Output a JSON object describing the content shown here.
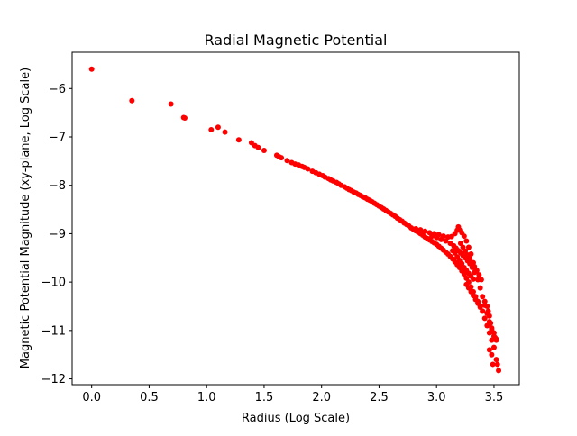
{
  "chart_data": {
    "type": "scatter",
    "title": "Radial Magnetic Potential",
    "xlabel": "Radius (Log Scale)",
    "ylabel": "Magnetic Potential Magnitude (xy-plane, Log Scale)",
    "xlim": [
      -0.17,
      3.72
    ],
    "ylim": [
      -12.12,
      -5.25
    ],
    "xticks": [
      0,
      0.5,
      1,
      1.5,
      2,
      2.5,
      3,
      3.5
    ],
    "xtick_labels": [
      "0.0",
      "0.5",
      "1.0",
      "1.5",
      "2.0",
      "2.5",
      "3.0",
      "3.5"
    ],
    "yticks": [
      -12,
      -11,
      -10,
      -9,
      -8,
      -7,
      -6
    ],
    "ytick_labels": [
      "−12",
      "−11",
      "−10",
      "−9",
      "−8",
      "−7",
      "−6"
    ],
    "grid": false,
    "legend": "none",
    "marker_color": "#ff0000",
    "series": [
      {
        "points": [
          [
            0.0,
            -5.6
          ],
          [
            0.35,
            -6.25
          ],
          [
            0.69,
            -6.32
          ],
          [
            0.8,
            -6.6
          ],
          [
            0.81,
            -6.61
          ],
          [
            1.04,
            -6.85
          ],
          [
            1.1,
            -6.8
          ],
          [
            1.16,
            -6.9
          ],
          [
            1.28,
            -7.06
          ],
          [
            1.39,
            -7.12
          ],
          [
            1.42,
            -7.18
          ],
          [
            1.45,
            -7.22
          ],
          [
            1.5,
            -7.28
          ],
          [
            1.61,
            -7.38
          ],
          [
            1.63,
            -7.41
          ],
          [
            1.65,
            -7.43
          ],
          [
            1.7,
            -7.49
          ],
          [
            1.74,
            -7.53
          ],
          [
            1.77,
            -7.56
          ],
          [
            1.8,
            -7.58
          ],
          [
            1.83,
            -7.61
          ],
          [
            1.85,
            -7.63
          ],
          [
            1.88,
            -7.66
          ],
          [
            1.92,
            -7.71
          ],
          [
            1.95,
            -7.74
          ],
          [
            1.98,
            -7.77
          ],
          [
            2.01,
            -7.8
          ],
          [
            2.03,
            -7.83
          ],
          [
            2.06,
            -7.86
          ],
          [
            2.08,
            -7.89
          ],
          [
            2.1,
            -7.91
          ],
          [
            2.13,
            -7.94
          ],
          [
            2.15,
            -7.97
          ],
          [
            2.17,
            -8.0
          ],
          [
            2.2,
            -8.03
          ],
          [
            2.22,
            -8.06
          ],
          [
            2.24,
            -8.09
          ],
          [
            2.26,
            -8.11
          ],
          [
            2.28,
            -8.14
          ],
          [
            2.3,
            -8.16
          ],
          [
            2.32,
            -8.19
          ],
          [
            2.34,
            -8.21
          ],
          [
            2.36,
            -8.24
          ],
          [
            2.38,
            -8.26
          ],
          [
            2.4,
            -8.29
          ],
          [
            2.42,
            -8.31
          ],
          [
            2.44,
            -8.34
          ],
          [
            2.46,
            -8.37
          ],
          [
            2.48,
            -8.4
          ],
          [
            2.5,
            -8.43
          ],
          [
            2.52,
            -8.46
          ],
          [
            2.54,
            -8.49
          ],
          [
            2.56,
            -8.52
          ],
          [
            2.58,
            -8.55
          ],
          [
            2.6,
            -8.58
          ],
          [
            2.62,
            -8.61
          ],
          [
            2.64,
            -8.64
          ],
          [
            2.66,
            -8.68
          ],
          [
            2.68,
            -8.71
          ],
          [
            2.7,
            -8.74
          ],
          [
            2.72,
            -8.78
          ],
          [
            2.74,
            -8.81
          ],
          [
            2.76,
            -8.84
          ],
          [
            2.78,
            -8.88
          ],
          [
            2.8,
            -8.91
          ],
          [
            2.82,
            -8.94
          ],
          [
            2.84,
            -8.97
          ],
          [
            2.86,
            -9.0
          ],
          [
            2.88,
            -9.03
          ],
          [
            2.9,
            -9.07
          ],
          [
            2.92,
            -9.1
          ],
          [
            2.94,
            -9.13
          ],
          [
            2.96,
            -9.16
          ],
          [
            2.98,
            -9.19
          ],
          [
            3.0,
            -9.22
          ],
          [
            3.02,
            -9.26
          ],
          [
            3.04,
            -9.3
          ],
          [
            3.06,
            -9.34
          ],
          [
            3.08,
            -9.38
          ],
          [
            3.1,
            -9.42
          ],
          [
            3.12,
            -9.47
          ],
          [
            3.14,
            -9.52
          ],
          [
            3.16,
            -9.58
          ],
          [
            3.18,
            -9.64
          ],
          [
            3.2,
            -9.7
          ],
          [
            3.22,
            -9.77
          ],
          [
            3.24,
            -9.84
          ],
          [
            3.26,
            -9.92
          ],
          [
            3.28,
            -10.0
          ],
          [
            3.3,
            -10.1
          ],
          [
            3.32,
            -10.2
          ],
          [
            3.34,
            -10.3
          ],
          [
            3.36,
            -10.4
          ],
          [
            3.38,
            -10.5
          ],
          [
            3.4,
            -10.6
          ],
          [
            3.42,
            -10.75
          ],
          [
            3.44,
            -10.9
          ],
          [
            3.46,
            -11.05
          ],
          [
            3.48,
            -11.2
          ],
          [
            3.5,
            -11.35
          ],
          [
            2.82,
            -8.9
          ],
          [
            2.86,
            -8.92
          ],
          [
            2.9,
            -8.95
          ],
          [
            2.94,
            -8.98
          ],
          [
            2.98,
            -9.0
          ],
          [
            3.02,
            -9.02
          ],
          [
            3.06,
            -9.05
          ],
          [
            3.1,
            -9.07
          ],
          [
            3.13,
            -9.06
          ],
          [
            3.16,
            -9.0
          ],
          [
            3.18,
            -8.93
          ],
          [
            3.19,
            -8.86
          ],
          [
            3.2,
            -8.92
          ],
          [
            3.22,
            -8.98
          ],
          [
            3.24,
            -9.05
          ],
          [
            3.26,
            -9.15
          ],
          [
            3.28,
            -9.28
          ],
          [
            3.3,
            -9.42
          ],
          [
            3.32,
            -9.6
          ],
          [
            3.34,
            -9.78
          ],
          [
            3.36,
            -9.95
          ],
          [
            3.38,
            -10.12
          ],
          [
            3.4,
            -10.3
          ],
          [
            3.42,
            -10.48
          ],
          [
            3.44,
            -10.65
          ],
          [
            3.46,
            -10.82
          ],
          [
            3.48,
            -10.98
          ],
          [
            3.5,
            -11.12
          ],
          [
            3.52,
            -11.18
          ],
          [
            2.96,
            -9.05
          ],
          [
            3.0,
            -9.08
          ],
          [
            3.04,
            -9.12
          ],
          [
            3.08,
            -9.15
          ],
          [
            3.12,
            -9.2
          ],
          [
            3.15,
            -9.25
          ],
          [
            3.17,
            -9.3
          ],
          [
            3.19,
            -9.35
          ],
          [
            3.21,
            -9.4
          ],
          [
            3.23,
            -9.45
          ],
          [
            3.25,
            -9.5
          ],
          [
            3.27,
            -9.56
          ],
          [
            3.29,
            -9.62
          ],
          [
            3.31,
            -9.7
          ],
          [
            3.33,
            -9.8
          ],
          [
            3.14,
            -9.35
          ],
          [
            3.16,
            -9.4
          ],
          [
            3.18,
            -9.48
          ],
          [
            3.2,
            -9.55
          ],
          [
            3.22,
            -9.62
          ],
          [
            3.24,
            -9.7
          ],
          [
            3.26,
            -9.76
          ],
          [
            3.28,
            -9.82
          ],
          [
            3.3,
            -9.88
          ],
          [
            3.32,
            -9.94
          ],
          [
            3.21,
            -9.2
          ],
          [
            3.23,
            -9.28
          ],
          [
            3.25,
            -9.36
          ],
          [
            3.27,
            -9.44
          ],
          [
            3.29,
            -9.52
          ],
          [
            3.31,
            -9.6
          ],
          [
            3.33,
            -9.68
          ],
          [
            3.35,
            -9.76
          ],
          [
            3.37,
            -9.85
          ],
          [
            3.39,
            -9.95
          ],
          [
            3.26,
            -10.05
          ],
          [
            3.28,
            -10.12
          ],
          [
            3.3,
            -10.2
          ],
          [
            3.32,
            -10.28
          ],
          [
            3.34,
            -10.36
          ],
          [
            3.36,
            -10.44
          ],
          [
            3.38,
            -10.52
          ],
          [
            3.4,
            -10.6
          ],
          [
            3.42,
            -10.4
          ],
          [
            3.44,
            -10.5
          ],
          [
            3.45,
            -10.6
          ],
          [
            3.46,
            -10.7
          ],
          [
            3.47,
            -10.85
          ],
          [
            3.48,
            -10.95
          ],
          [
            3.5,
            -11.05
          ],
          [
            3.51,
            -11.15
          ],
          [
            3.52,
            -11.2
          ],
          [
            3.46,
            -11.4
          ],
          [
            3.48,
            -11.5
          ],
          [
            3.49,
            -11.7
          ],
          [
            3.52,
            -11.6
          ],
          [
            3.53,
            -11.7
          ],
          [
            3.54,
            -11.83
          ]
        ]
      }
    ]
  }
}
